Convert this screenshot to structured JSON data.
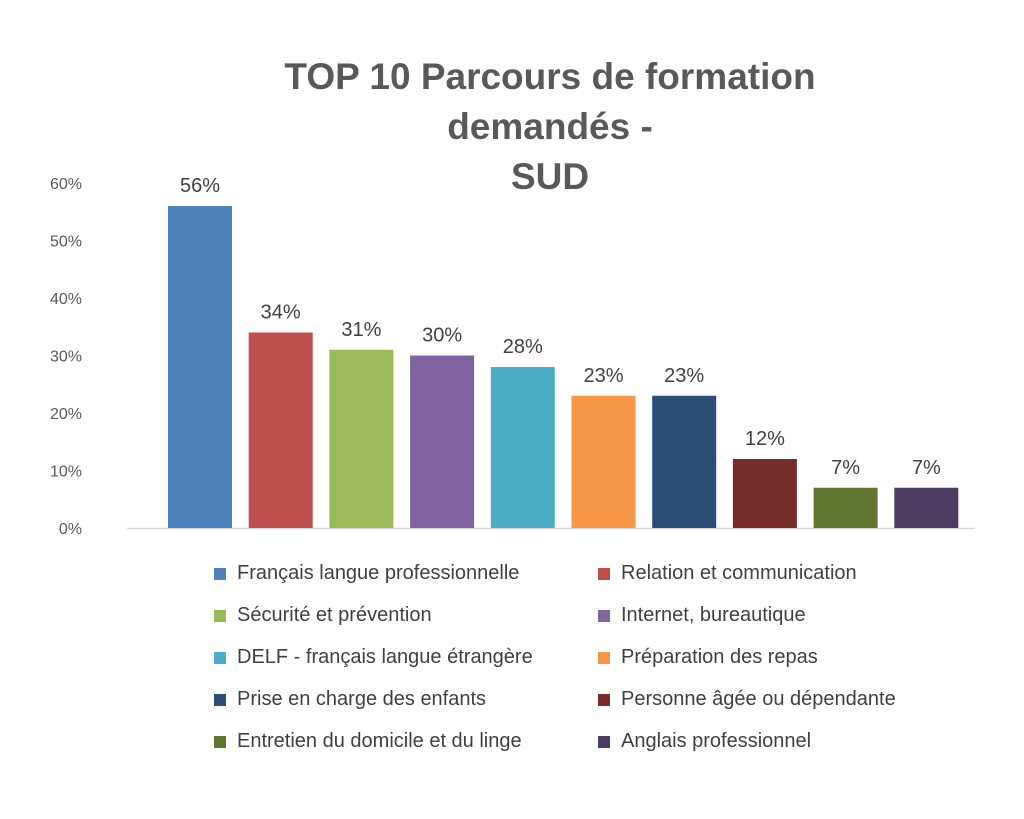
{
  "chart_data": {
    "type": "bar",
    "title_lines": [
      "TOP 10 Parcours de formation demandés -",
      "SUD"
    ],
    "categories": [
      "Français langue professionnelle",
      "Relation et communication",
      "Sécurité et prévention",
      "Internet, bureautique",
      "DELF - français langue étrangère",
      "Préparation des repas",
      "Prise en charge des enfants",
      "Personne âgée ou dépendante",
      "Entretien du domicile et du linge",
      "Anglais professionnel"
    ],
    "values": [
      56,
      34,
      31,
      30,
      28,
      23,
      23,
      12,
      7,
      7
    ],
    "data_labels": [
      "56%",
      "34%",
      "31%",
      "30%",
      "28%",
      "23%",
      "23%",
      "12%",
      "7%",
      "7%"
    ],
    "colors": [
      "#4F81BD",
      "#C0504D",
      "#9BBB59",
      "#8064A2",
      "#4BACC6",
      "#F79646",
      "#2C4D75",
      "#772C2A",
      "#5F7530",
      "#4D3B62"
    ],
    "y_ticks": [
      0,
      10,
      20,
      30,
      40,
      50,
      60
    ],
    "y_tick_labels": [
      "0%",
      "10%",
      "20%",
      "30%",
      "40%",
      "50%",
      "60%"
    ],
    "ylim": [
      0,
      60
    ],
    "grid": false,
    "legend_position": "bottom"
  }
}
